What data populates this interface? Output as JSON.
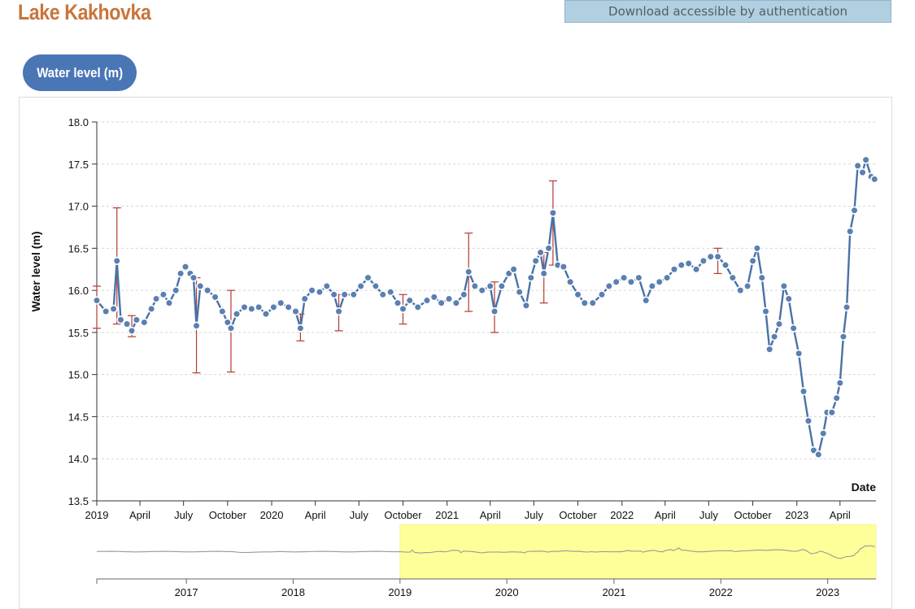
{
  "header": {
    "title": "Lake Kakhovka",
    "download_label": "Download accessible by authentication",
    "tab_label": "Water level (m)"
  },
  "colors": {
    "title": "#c8753a",
    "line": "#4a72a8",
    "marker": "#5b7fb0",
    "error_bar": "#b33a30",
    "brush_highlight": "#ffff99",
    "overview_line": "#999999"
  },
  "chart_data": {
    "type": "line",
    "ylabel": "Water level (m)",
    "xlabel": "Date",
    "ylim": [
      13.5,
      18.0
    ],
    "yticks": [
      "18.0",
      "17.5",
      "17.0",
      "16.5",
      "16.0",
      "15.5",
      "15.0",
      "14.5",
      "14.0",
      "13.5"
    ],
    "xlim": [
      "2019-01-01",
      "2023-06-15"
    ],
    "xticks": [
      "2019",
      "April",
      "July",
      "October",
      "2020",
      "April",
      "July",
      "October",
      "2021",
      "April",
      "July",
      "October",
      "2022",
      "April",
      "July",
      "October",
      "2023",
      "April"
    ],
    "grid": "horizontal dashed",
    "series": [
      {
        "values": [
          {
            "date": "2019-01-01",
            "y": 15.88,
            "err": [
              15.55,
              16.05
            ]
          },
          {
            "date": "2019-01-20",
            "y": 15.75
          },
          {
            "date": "2019-02-05",
            "y": 15.78
          },
          {
            "date": "2019-02-12",
            "y": 16.35,
            "err": [
              15.6,
              16.98
            ]
          },
          {
            "date": "2019-02-20",
            "y": 15.65
          },
          {
            "date": "2019-03-05",
            "y": 15.6
          },
          {
            "date": "2019-03-15",
            "y": 15.52,
            "err": [
              15.45,
              15.7
            ]
          },
          {
            "date": "2019-03-25",
            "y": 15.65
          },
          {
            "date": "2019-04-10",
            "y": 15.62
          },
          {
            "date": "2019-04-25",
            "y": 15.78
          },
          {
            "date": "2019-05-05",
            "y": 15.9
          },
          {
            "date": "2019-05-20",
            "y": 15.95
          },
          {
            "date": "2019-06-01",
            "y": 15.85
          },
          {
            "date": "2019-06-15",
            "y": 16.0
          },
          {
            "date": "2019-06-25",
            "y": 16.2
          },
          {
            "date": "2019-07-05",
            "y": 16.28
          },
          {
            "date": "2019-07-15",
            "y": 16.2
          },
          {
            "date": "2019-07-22",
            "y": 16.15
          },
          {
            "date": "2019-07-28",
            "y": 15.58,
            "err": [
              15.02,
              16.15
            ]
          },
          {
            "date": "2019-08-05",
            "y": 16.05
          },
          {
            "date": "2019-08-20",
            "y": 16.0
          },
          {
            "date": "2019-09-05",
            "y": 15.92
          },
          {
            "date": "2019-09-20",
            "y": 15.75
          },
          {
            "date": "2019-10-01",
            "y": 15.62
          },
          {
            "date": "2019-10-08",
            "y": 15.55,
            "err": [
              15.03,
              16.0
            ]
          },
          {
            "date": "2019-10-20",
            "y": 15.72
          },
          {
            "date": "2019-11-05",
            "y": 15.8
          },
          {
            "date": "2019-11-20",
            "y": 15.78
          },
          {
            "date": "2019-12-05",
            "y": 15.8
          },
          {
            "date": "2019-12-20",
            "y": 15.72
          },
          {
            "date": "2020-01-05",
            "y": 15.8
          },
          {
            "date": "2020-01-20",
            "y": 15.85
          },
          {
            "date": "2020-02-05",
            "y": 15.8
          },
          {
            "date": "2020-02-20",
            "y": 15.75
          },
          {
            "date": "2020-03-01",
            "y": 15.55,
            "err": [
              15.4,
              15.72
            ]
          },
          {
            "date": "2020-03-10",
            "y": 15.9
          },
          {
            "date": "2020-03-25",
            "y": 16.0
          },
          {
            "date": "2020-04-10",
            "y": 15.98
          },
          {
            "date": "2020-04-25",
            "y": 16.05
          },
          {
            "date": "2020-05-10",
            "y": 15.95
          },
          {
            "date": "2020-05-20",
            "y": 15.75,
            "err": [
              15.52,
              15.95
            ]
          },
          {
            "date": "2020-06-01",
            "y": 15.95
          },
          {
            "date": "2020-06-20",
            "y": 15.95
          },
          {
            "date": "2020-07-05",
            "y": 16.05
          },
          {
            "date": "2020-07-20",
            "y": 16.15
          },
          {
            "date": "2020-08-05",
            "y": 16.05
          },
          {
            "date": "2020-08-20",
            "y": 15.95
          },
          {
            "date": "2020-09-05",
            "y": 15.98
          },
          {
            "date": "2020-09-20",
            "y": 15.85
          },
          {
            "date": "2020-10-01",
            "y": 15.78,
            "err": [
              15.6,
              15.95
            ]
          },
          {
            "date": "2020-10-15",
            "y": 15.88
          },
          {
            "date": "2020-11-01",
            "y": 15.8
          },
          {
            "date": "2020-11-20",
            "y": 15.88
          },
          {
            "date": "2020-12-05",
            "y": 15.92
          },
          {
            "date": "2020-12-20",
            "y": 15.85
          },
          {
            "date": "2021-01-05",
            "y": 15.9
          },
          {
            "date": "2021-01-20",
            "y": 15.85
          },
          {
            "date": "2021-02-05",
            "y": 15.95
          },
          {
            "date": "2021-02-15",
            "y": 16.22,
            "err": [
              15.75,
              16.68
            ]
          },
          {
            "date": "2021-02-28",
            "y": 16.05
          },
          {
            "date": "2021-03-15",
            "y": 16.0
          },
          {
            "date": "2021-04-01",
            "y": 16.05
          },
          {
            "date": "2021-04-10",
            "y": 15.75,
            "err": [
              15.5,
              16.1
            ]
          },
          {
            "date": "2021-04-25",
            "y": 16.05
          },
          {
            "date": "2021-05-10",
            "y": 16.2
          },
          {
            "date": "2021-05-20",
            "y": 16.25
          },
          {
            "date": "2021-06-01",
            "y": 15.98
          },
          {
            "date": "2021-06-15",
            "y": 15.82
          },
          {
            "date": "2021-06-25",
            "y": 16.15
          },
          {
            "date": "2021-07-05",
            "y": 16.35
          },
          {
            "date": "2021-07-15",
            "y": 16.45
          },
          {
            "date": "2021-07-22",
            "y": 16.2,
            "err": [
              15.85,
              16.45
            ]
          },
          {
            "date": "2021-08-01",
            "y": 16.5
          },
          {
            "date": "2021-08-10",
            "y": 16.92,
            "err": [
              16.3,
              17.3
            ]
          },
          {
            "date": "2021-08-20",
            "y": 16.3
          },
          {
            "date": "2021-09-01",
            "y": 16.28
          },
          {
            "date": "2021-09-15",
            "y": 16.1
          },
          {
            "date": "2021-10-01",
            "y": 15.95
          },
          {
            "date": "2021-10-15",
            "y": 15.85
          },
          {
            "date": "2021-11-01",
            "y": 15.85
          },
          {
            "date": "2021-11-20",
            "y": 15.95
          },
          {
            "date": "2021-12-05",
            "y": 16.05
          },
          {
            "date": "2021-12-20",
            "y": 16.1
          },
          {
            "date": "2022-01-05",
            "y": 16.15
          },
          {
            "date": "2022-01-20",
            "y": 16.1
          },
          {
            "date": "2022-02-05",
            "y": 16.15
          },
          {
            "date": "2022-02-20",
            "y": 15.88
          },
          {
            "date": "2022-03-05",
            "y": 16.05
          },
          {
            "date": "2022-03-20",
            "y": 16.1
          },
          {
            "date": "2022-04-05",
            "y": 16.15
          },
          {
            "date": "2022-04-20",
            "y": 16.25
          },
          {
            "date": "2022-05-05",
            "y": 16.3
          },
          {
            "date": "2022-05-20",
            "y": 16.32
          },
          {
            "date": "2022-06-05",
            "y": 16.25
          },
          {
            "date": "2022-06-20",
            "y": 16.35
          },
          {
            "date": "2022-07-05",
            "y": 16.4
          },
          {
            "date": "2022-07-20",
            "y": 16.4,
            "err": [
              16.2,
              16.5
            ]
          },
          {
            "date": "2022-08-05",
            "y": 16.3
          },
          {
            "date": "2022-08-20",
            "y": 16.15
          },
          {
            "date": "2022-09-05",
            "y": 16.0
          },
          {
            "date": "2022-09-20",
            "y": 16.05
          },
          {
            "date": "2022-10-01",
            "y": 16.35
          },
          {
            "date": "2022-10-10",
            "y": 16.5
          },
          {
            "date": "2022-10-20",
            "y": 16.15
          },
          {
            "date": "2022-10-28",
            "y": 15.75
          },
          {
            "date": "2022-11-05",
            "y": 15.3
          },
          {
            "date": "2022-11-15",
            "y": 15.45
          },
          {
            "date": "2022-11-25",
            "y": 15.6
          },
          {
            "date": "2022-12-05",
            "y": 16.05
          },
          {
            "date": "2022-12-15",
            "y": 15.9
          },
          {
            "date": "2022-12-25",
            "y": 15.55
          },
          {
            "date": "2023-01-05",
            "y": 15.25
          },
          {
            "date": "2023-01-15",
            "y": 14.8
          },
          {
            "date": "2023-01-25",
            "y": 14.45
          },
          {
            "date": "2023-02-05",
            "y": 14.1
          },
          {
            "date": "2023-02-15",
            "y": 14.05
          },
          {
            "date": "2023-02-25",
            "y": 14.3
          },
          {
            "date": "2023-03-05",
            "y": 14.55
          },
          {
            "date": "2023-03-15",
            "y": 14.55
          },
          {
            "date": "2023-03-25",
            "y": 14.72
          },
          {
            "date": "2023-04-01",
            "y": 14.9
          },
          {
            "date": "2023-04-08",
            "y": 15.45
          },
          {
            "date": "2023-04-15",
            "y": 15.8
          },
          {
            "date": "2023-04-22",
            "y": 16.7
          },
          {
            "date": "2023-05-01",
            "y": 16.95
          },
          {
            "date": "2023-05-08",
            "y": 17.48
          },
          {
            "date": "2023-05-18",
            "y": 17.4
          },
          {
            "date": "2023-05-25",
            "y": 17.55
          },
          {
            "date": "2023-06-05",
            "y": 17.35
          },
          {
            "date": "2023-06-12",
            "y": 17.32
          }
        ]
      }
    ],
    "overview": {
      "xticks": [
        "2017",
        "2018",
        "2019",
        "2020",
        "2021",
        "2022",
        "2023"
      ],
      "range": [
        "2016-03-01",
        "2023-06-15"
      ],
      "selection": [
        "2019-01-01",
        "2023-06-15"
      ]
    }
  }
}
